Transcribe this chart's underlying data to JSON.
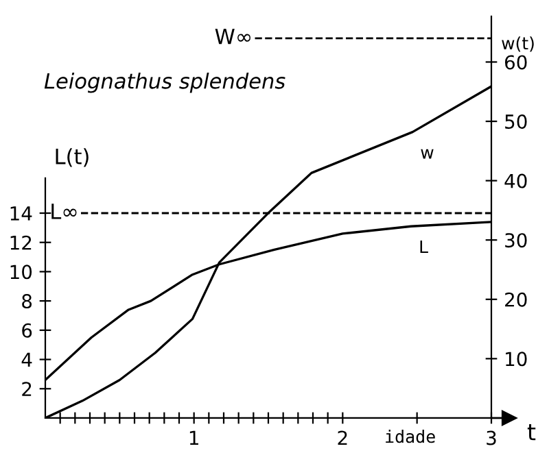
{
  "chart_data": {
    "type": "line",
    "title": "Leiognathus splendens",
    "xlabel": "t",
    "ylabel": "L(t)",
    "y2label": "w(t)",
    "annotations": [
      "idade"
    ],
    "series": [
      {
        "name": "L",
        "color": "#000000",
        "x": [
          0,
          0.31,
          0.56,
          0.71,
          0.99,
          1.17,
          1.54,
          2.0,
          2.46,
          3.0
        ],
        "values": [
          2.6,
          5.5,
          7.4,
          8.0,
          9.8,
          10.5,
          11.5,
          12.6,
          13.1,
          13.4
        ]
      },
      {
        "name": "w",
        "color": "#000000",
        "axis": "y2",
        "x": [
          0,
          0.25,
          0.5,
          0.74,
          0.99,
          1.17,
          1.51,
          1.79,
          2.47,
          3.0
        ],
        "values": [
          0,
          2.9,
          6.4,
          11.0,
          16.7,
          26.2,
          34.8,
          41.3,
          48.2,
          55.9
        ]
      }
    ],
    "xlim": [
      0,
      3
    ],
    "ylim": [
      0,
      16.4
    ],
    "y2lim": [
      0,
      67.7
    ],
    "xticks": [
      {
        "value": 0.1,
        "label": null
      },
      {
        "value": 0.2,
        "label": null
      },
      {
        "value": 0.3,
        "label": null
      },
      {
        "value": 0.4,
        "label": null
      },
      {
        "value": 0.5,
        "label": null
      },
      {
        "value": 0.6,
        "label": null
      },
      {
        "value": 0.7,
        "label": null
      },
      {
        "value": 0.8,
        "label": null
      },
      {
        "value": 0.9,
        "label": null
      },
      1,
      {
        "value": 1.1,
        "label": null
      },
      {
        "value": 1.2,
        "label": null
      },
      {
        "value": 1.3,
        "label": null
      },
      {
        "value": 1.4,
        "label": null
      },
      {
        "value": 1.5,
        "label": null
      },
      {
        "value": 1.6,
        "label": null
      },
      {
        "value": 1.7,
        "label": null
      },
      {
        "value": 1.8,
        "label": null
      },
      {
        "value": 1.9,
        "label": null
      },
      2,
      {
        "value": 2.5,
        "label": null
      },
      3
    ],
    "yticks": [
      2,
      4,
      6,
      8,
      10,
      12,
      14
    ],
    "y2ticks": [
      10,
      20,
      30,
      40,
      50,
      60
    ],
    "ref_lines": [
      {
        "axis": "y",
        "value": 14,
        "label": "L∞",
        "line_style": "dashed"
      },
      {
        "axis": "y2",
        "value": 64,
        "label": "W∞",
        "line_style": "dashed"
      }
    ],
    "grid": false,
    "marker": "none",
    "line_style": "solid"
  }
}
